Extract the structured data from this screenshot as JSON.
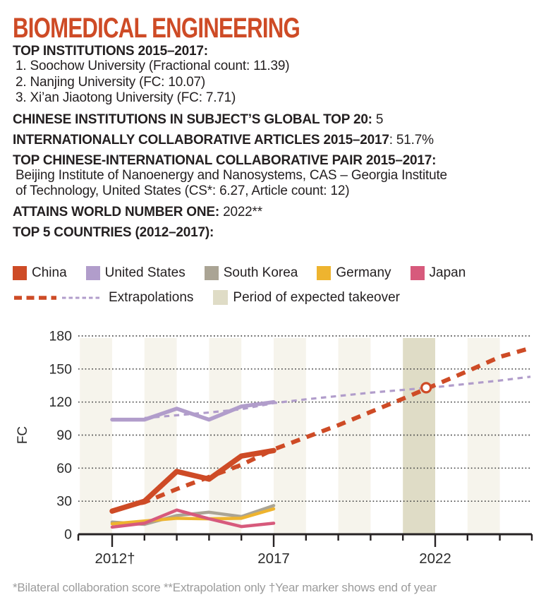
{
  "title": "BIOMEDICAL ENGINEERING",
  "stats": [
    {
      "label": "TOP INSTITUTIONS 2015–2017:",
      "items": [
        "1. Soochow University (Fractional count: 11.39)",
        "2. Nanjing University (FC: 10.07)",
        "3. Xi’an Jiaotong University (FC: 7.71)"
      ]
    },
    {
      "label": "CHINESE INSTITUTIONS IN SUBJECT’S GLOBAL TOP 20:",
      "value": " 5"
    },
    {
      "label": "INTERNATIONALLY COLLABORATIVE ARTICLES 2015–2017",
      "value": ": 51.7%"
    },
    {
      "label": "TOP CHINESE-INTERNATIONAL COLLABORATIVE PAIR 2015–2017:",
      "lines": [
        "Beijing Institute of Nanoenergy and Nanosystems, CAS – Georgia Institute",
        "of Technology, United States  (CS*: 6.27, Article count: 12)"
      ]
    },
    {
      "label": "ATTAINS WORLD NUMBER ONE:",
      "value": " 2022**"
    },
    {
      "label": "TOP 5 COUNTRIES (2012–2017):"
    }
  ],
  "legend": {
    "countries": [
      {
        "label": "China",
        "color": "#ce4b26"
      },
      {
        "label": "United States",
        "color": "#b19dcb"
      },
      {
        "label": "South Korea",
        "color": "#aaa494"
      },
      {
        "label": "Germany",
        "color": "#eeb42f"
      },
      {
        "label": "Japan",
        "color": "#d75a7c"
      }
    ],
    "extrapolations_label": "Extrapolations",
    "takeover_label": "Period of expected takeover",
    "takeover_color": "#dfdcc6"
  },
  "chart_data": {
    "type": "line",
    "ylabel": "FC",
    "ylim": [
      0,
      180
    ],
    "yticks": [
      0,
      30,
      60,
      90,
      120,
      150,
      180
    ],
    "xlim": [
      2011,
      2025
    ],
    "xticks_minor": [
      2012,
      2013,
      2014,
      2015,
      2016,
      2017,
      2018,
      2019,
      2020,
      2021,
      2022,
      2023,
      2024
    ],
    "xticks_labeled": [
      {
        "year": 2012,
        "label": "2012†"
      },
      {
        "year": 2017,
        "label": "2017"
      },
      {
        "year": 2022,
        "label": "2022"
      }
    ],
    "grid": "dotted-horizontal",
    "stripes_light": [
      [
        2011,
        2012
      ],
      [
        2013,
        2014
      ],
      [
        2015,
        2016
      ],
      [
        2017,
        2018
      ],
      [
        2019,
        2020
      ],
      [
        2023,
        2024
      ]
    ],
    "stripes_takeover": [
      [
        2021,
        2022
      ]
    ],
    "stripe_light_color": "#f6f4ec",
    "stripe_takeover_color": "#dfdcc6",
    "series": [
      {
        "name": "South Korea",
        "color": "#aaa494",
        "style": "solid",
        "width": 4.5,
        "x": [
          2012,
          2013,
          2014,
          2015,
          2016,
          2017
        ],
        "values": [
          11,
          9,
          17,
          20,
          16,
          26
        ]
      },
      {
        "name": "Germany",
        "color": "#eeb42f",
        "style": "solid",
        "width": 4.5,
        "x": [
          2012,
          2013,
          2014,
          2015,
          2016,
          2017
        ],
        "values": [
          9.5,
          12,
          14.5,
          14,
          14.5,
          23
        ]
      },
      {
        "name": "Japan",
        "color": "#d75a7c",
        "style": "solid",
        "width": 4.5,
        "x": [
          2012,
          2013,
          2014,
          2015,
          2016,
          2017
        ],
        "values": [
          6.5,
          10,
          22,
          14,
          7,
          10
        ]
      },
      {
        "name": "United States",
        "color": "#b19dcb",
        "style": "solid",
        "width": 5.5,
        "x": [
          2012,
          2013,
          2014,
          2015,
          2016,
          2017
        ],
        "values": [
          104,
          104,
          114,
          104,
          116,
          120
        ]
      },
      {
        "name": "United States extrapolation",
        "color": "#b19dcb",
        "style": "dashed",
        "width": 3.2,
        "x": [
          2013,
          2014,
          2015,
          2016,
          2017,
          2018,
          2019,
          2020,
          2021,
          2022,
          2023,
          2024,
          2024.95
        ],
        "values": [
          105.5,
          108,
          110.5,
          113.5,
          119,
          122.5,
          125.5,
          128.5,
          131,
          133.5,
          136.5,
          139.5,
          143
        ]
      },
      {
        "name": "China",
        "color": "#ce4b26",
        "style": "solid",
        "width": 7.5,
        "x": [
          2012,
          2013,
          2014,
          2015,
          2016,
          2017
        ],
        "values": [
          21,
          30,
          57,
          50,
          71,
          76
        ]
      },
      {
        "name": "China extrapolation",
        "color": "#ce4b26",
        "style": "dashed",
        "width": 6,
        "x": [
          2012.4,
          2013,
          2014,
          2015,
          2016,
          2017,
          2018,
          2019,
          2020,
          2021,
          2022,
          2023,
          2024,
          2024.95
        ],
        "values": [
          25,
          29,
          41,
          52,
          63,
          77,
          88,
          99,
          111,
          123,
          135.5,
          148,
          161,
          169
        ]
      }
    ],
    "takeover_point": {
      "x": 2021.72,
      "value": 133
    }
  },
  "footnote": "*Bilateral collaboration score **Extrapolation only †Year marker shows end of year"
}
